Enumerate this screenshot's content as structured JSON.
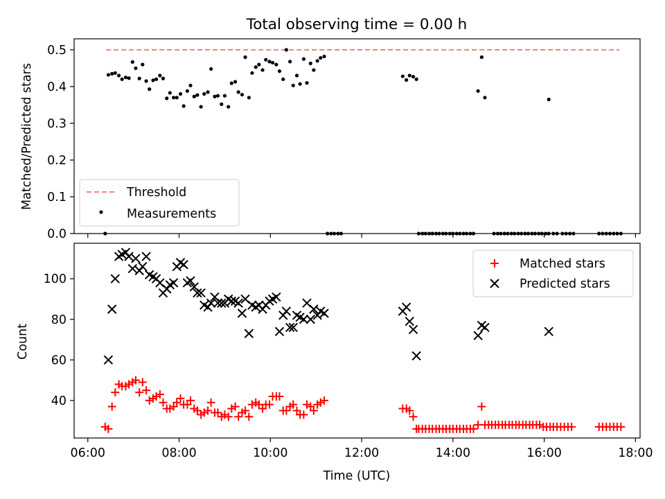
{
  "figure": {
    "title": "Total observing time = 0.00 h"
  },
  "chart_data": [
    {
      "type": "scatter",
      "ylabel": "Matched/Predicted stars",
      "xlim": [
        -0.3,
        12.1
      ],
      "ylim": [
        0.0,
        0.53
      ],
      "yticks": [
        0.0,
        0.1,
        0.2,
        0.3,
        0.4,
        0.5
      ],
      "yticklabels": [
        "0.0",
        "0.1",
        "0.2",
        "0.3",
        "0.4",
        "0.5"
      ],
      "xtick_positions": [
        0,
        2,
        4,
        6,
        8,
        10,
        12
      ],
      "xtick_labels_shown": false,
      "legend": {
        "placement": "lower-left",
        "entries": [
          {
            "label": "Threshold",
            "style": "dashed-line",
            "color": "#f08080"
          },
          {
            "label": "Measurements",
            "style": "dot",
            "color": "#000000"
          }
        ]
      },
      "series": [
        {
          "name": "Threshold",
          "style": "dashed-line",
          "color": "#f08080",
          "x": [
            0.4,
            11.65
          ],
          "y": [
            0.5,
            0.5
          ]
        },
        {
          "name": "Measurements",
          "style": "dot",
          "color": "#000000",
          "x": [
            0.38,
            0.45,
            0.53,
            0.6,
            0.68,
            0.75,
            0.83,
            0.9,
            0.98,
            1.05,
            1.13,
            1.2,
            1.28,
            1.35,
            1.43,
            1.5,
            1.58,
            1.65,
            1.73,
            1.8,
            1.88,
            1.95,
            2.03,
            2.1,
            2.18,
            2.25,
            2.33,
            2.4,
            2.48,
            2.55,
            2.63,
            2.7,
            2.78,
            2.85,
            2.93,
            3.0,
            3.08,
            3.15,
            3.23,
            3.3,
            3.38,
            3.45,
            3.53,
            3.6,
            3.68,
            3.75,
            3.83,
            3.9,
            3.98,
            4.05,
            4.13,
            4.2,
            4.28,
            4.35,
            4.43,
            4.5,
            4.58,
            4.65,
            4.73,
            4.8,
            4.88,
            4.95,
            5.03,
            5.1,
            5.18,
            5.25,
            5.33,
            5.4,
            5.48,
            5.55,
            6.9,
            6.98,
            7.05,
            7.13,
            7.2,
            8.55,
            8.63,
            8.7,
            10.1
          ],
          "y": [
            0.0,
            0.432,
            0.435,
            0.437,
            0.43,
            0.42,
            0.425,
            0.423,
            0.467,
            0.45,
            0.422,
            0.46,
            0.415,
            0.393,
            0.417,
            0.42,
            0.43,
            0.422,
            0.368,
            0.383,
            0.37,
            0.37,
            0.38,
            0.347,
            0.388,
            0.403,
            0.373,
            0.377,
            0.345,
            0.38,
            0.385,
            0.448,
            0.373,
            0.375,
            0.352,
            0.375,
            0.345,
            0.409,
            0.413,
            0.385,
            0.378,
            0.48,
            0.37,
            0.437,
            0.453,
            0.46,
            0.445,
            0.473,
            0.468,
            0.465,
            0.46,
            0.442,
            0.42,
            0.5,
            0.468,
            0.403,
            0.43,
            0.407,
            0.475,
            0.41,
            0.463,
            0.445,
            0.47,
            0.478,
            0.482,
            0.0,
            0.0,
            0.0,
            0.0,
            0.0,
            0.428,
            0.418,
            0.43,
            0.427,
            0.42,
            0.388,
            0.48,
            0.37,
            0.365
          ]
        },
        {
          "name": "Measurements-zero-run",
          "style": "dot",
          "color": "#000000",
          "x": [
            7.25,
            7.33,
            7.4,
            7.48,
            7.55,
            7.63,
            7.7,
            7.78,
            7.85,
            7.93,
            8.0,
            8.08,
            8.15,
            8.23,
            8.3,
            8.38,
            8.45,
            8.9,
            8.98,
            9.05,
            9.13,
            9.2,
            9.28,
            9.35,
            9.43,
            9.5,
            9.58,
            9.65,
            9.73,
            9.8,
            9.88,
            9.95,
            10.03,
            10.1,
            10.2,
            10.28,
            10.4,
            10.48,
            10.56,
            10.64,
            11.2,
            11.28,
            11.36,
            11.44,
            11.52,
            11.6,
            11.68
          ],
          "y": [
            0,
            0,
            0,
            0,
            0,
            0,
            0,
            0,
            0,
            0,
            0,
            0,
            0,
            0,
            0,
            0,
            0,
            0,
            0,
            0,
            0,
            0,
            0,
            0,
            0,
            0,
            0,
            0,
            0,
            0,
            0,
            0,
            0,
            0,
            0,
            0,
            0,
            0,
            0,
            0,
            0,
            0,
            0,
            0,
            0,
            0,
            0
          ]
        }
      ]
    },
    {
      "type": "scatter",
      "xlabel": "Time (UTC)",
      "ylabel": "Count",
      "xlim": [
        -0.3,
        12.1
      ],
      "ylim": [
        21.5,
        117.5
      ],
      "yticks": [
        40,
        60,
        80,
        100
      ],
      "yticklabels": [
        "40",
        "60",
        "80",
        "100"
      ],
      "xtick_positions": [
        0,
        2,
        4,
        6,
        8,
        10,
        12
      ],
      "xtick_labels": [
        "06:00",
        "08:00",
        "10:00",
        "12:00",
        "14:00",
        "16:00",
        "18:00"
      ],
      "legend": {
        "placement": "upper-right",
        "entries": [
          {
            "label": "Matched stars",
            "style": "plus",
            "color": "#ff0000"
          },
          {
            "label": "Predicted stars",
            "style": "x",
            "color": "#000000"
          }
        ]
      },
      "series": [
        {
          "name": "Matched stars",
          "style": "plus",
          "color": "#ff0000",
          "x": [
            0.38,
            0.45,
            0.53,
            0.6,
            0.68,
            0.75,
            0.83,
            0.9,
            0.98,
            1.05,
            1.13,
            1.2,
            1.28,
            1.35,
            1.43,
            1.5,
            1.58,
            1.65,
            1.73,
            1.8,
            1.88,
            1.95,
            2.03,
            2.1,
            2.18,
            2.25,
            2.33,
            2.4,
            2.48,
            2.55,
            2.63,
            2.7,
            2.78,
            2.85,
            2.93,
            3.0,
            3.08,
            3.15,
            3.23,
            3.3,
            3.38,
            3.45,
            3.53,
            3.6,
            3.68,
            3.75,
            3.83,
            3.9,
            3.98,
            4.05,
            4.13,
            4.2,
            4.28,
            4.35,
            4.43,
            4.5,
            4.58,
            4.65,
            4.73,
            4.8,
            4.88,
            4.95,
            5.03,
            5.1,
            5.18,
            6.9,
            6.98,
            7.05,
            7.13,
            7.2,
            7.25,
            7.33,
            7.4,
            7.48,
            7.55,
            7.63,
            7.7,
            7.78,
            7.85,
            7.93,
            8.0,
            8.08,
            8.15,
            8.23,
            8.3,
            8.38,
            8.45,
            8.55,
            8.63,
            8.7,
            8.78,
            8.85,
            8.93,
            9.0,
            9.08,
            9.15,
            9.23,
            9.3,
            9.38,
            9.45,
            9.53,
            9.6,
            9.68,
            9.75,
            9.83,
            9.9,
            9.98,
            10.05,
            10.13,
            10.2,
            10.28,
            10.36,
            10.44,
            10.52,
            10.6,
            11.2,
            11.28,
            11.36,
            11.44,
            11.52,
            11.6,
            11.68
          ],
          "y": [
            27,
            26,
            37,
            44,
            48,
            47,
            47,
            48,
            49,
            50,
            44,
            49,
            45,
            40,
            41,
            42,
            43,
            39,
            36,
            36,
            37,
            39,
            41,
            38,
            38,
            40,
            36,
            35,
            33,
            34,
            35,
            39,
            34,
            34,
            32,
            33,
            32,
            36,
            37,
            32,
            34,
            35,
            32,
            38,
            39,
            38,
            36,
            38,
            38,
            42,
            42,
            42,
            35,
            35,
            37,
            38,
            35,
            33,
            33,
            38,
            37,
            35,
            38,
            39,
            40,
            36,
            36,
            35,
            32,
            26,
            26,
            26,
            26,
            26,
            26,
            26,
            26,
            26,
            26,
            26,
            26,
            26,
            26,
            26,
            26,
            26,
            26,
            28,
            37,
            28,
            28,
            28,
            28,
            28,
            28,
            28,
            28,
            28,
            28,
            28,
            28,
            28,
            28,
            28,
            28,
            28,
            27,
            27,
            27,
            27,
            27,
            27,
            27,
            27,
            27,
            27,
            27,
            27,
            27,
            27,
            27,
            27
          ]
        },
        {
          "name": "Predicted stars",
          "style": "x",
          "color": "#000000",
          "x": [
            0.45,
            0.53,
            0.6,
            0.68,
            0.75,
            0.83,
            0.9,
            0.98,
            1.05,
            1.13,
            1.2,
            1.28,
            1.35,
            1.43,
            1.5,
            1.58,
            1.65,
            1.73,
            1.8,
            1.88,
            1.95,
            2.03,
            2.1,
            2.18,
            2.25,
            2.33,
            2.4,
            2.48,
            2.55,
            2.63,
            2.7,
            2.78,
            2.85,
            2.93,
            3.0,
            3.08,
            3.15,
            3.23,
            3.3,
            3.38,
            3.45,
            3.53,
            3.6,
            3.68,
            3.75,
            3.83,
            3.9,
            3.98,
            4.05,
            4.13,
            4.2,
            4.28,
            4.35,
            4.43,
            4.5,
            4.58,
            4.65,
            4.73,
            4.8,
            4.88,
            4.95,
            5.03,
            5.1,
            5.18,
            6.9,
            6.98,
            7.05,
            7.13,
            7.2,
            8.55,
            8.63,
            8.7,
            10.1
          ],
          "y": [
            60,
            85,
            100,
            111,
            112,
            113,
            111,
            105,
            110,
            104,
            106,
            111,
            102,
            101,
            100,
            98,
            93,
            95,
            97,
            98,
            106,
            108,
            107,
            98,
            99,
            96,
            93,
            93,
            87,
            86,
            88,
            91,
            88,
            88,
            88,
            90,
            89,
            89,
            88,
            83,
            90,
            73,
            87,
            86,
            87,
            85,
            87,
            89,
            90,
            91,
            74,
            82,
            84,
            76,
            76,
            82,
            81,
            80,
            88,
            80,
            85,
            82,
            84,
            83,
            84,
            86,
            79,
            75,
            62,
            72,
            77,
            76,
            74
          ]
        }
      ]
    }
  ]
}
